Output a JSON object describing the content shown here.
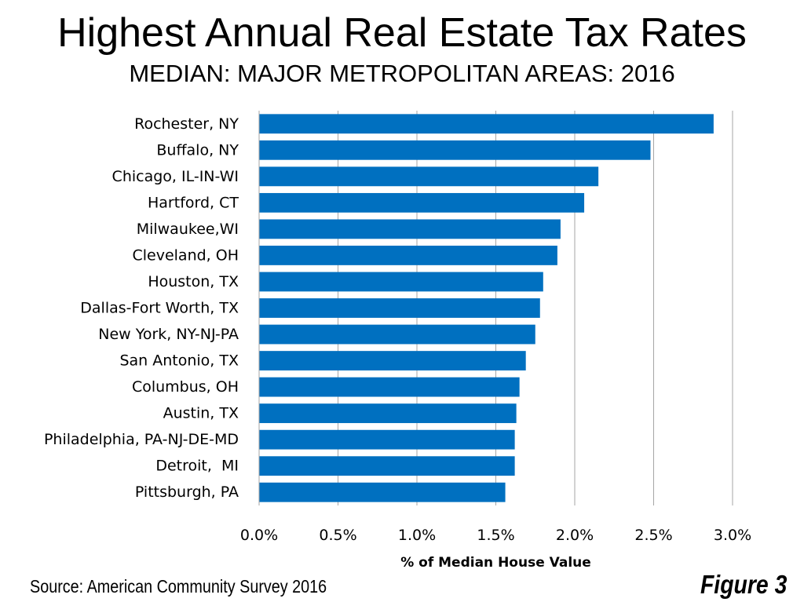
{
  "chart_data": {
    "type": "bar",
    "orientation": "horizontal",
    "title": "Highest Annual Real Estate Tax Rates",
    "subtitle": "MEDIAN: MAJOR METROPOLITAN AREAS: 2016",
    "categories": [
      "Rochester, NY",
      "Buffalo, NY",
      "Chicago, IL-IN-WI",
      "Hartford, CT",
      "Milwaukee,WI",
      "Cleveland, OH",
      "Houston, TX",
      "Dallas-Fort Worth, TX",
      "New York, NY-NJ-PA",
      "San Antonio, TX",
      "Columbus, OH",
      "Austin, TX",
      "Philadelphia, PA-NJ-DE-MD",
      "Detroit,  MI",
      "Pittsburgh, PA"
    ],
    "values": [
      2.88,
      2.48,
      2.15,
      2.06,
      1.91,
      1.89,
      1.8,
      1.78,
      1.75,
      1.69,
      1.65,
      1.63,
      1.62,
      1.62,
      1.56
    ],
    "xlabel": "% of Median House Value",
    "ylabel": "",
    "xlim": [
      0,
      3.0
    ],
    "ticks": [
      0,
      0.5,
      1.0,
      1.5,
      2.0,
      2.5,
      3.0
    ],
    "tick_labels": [
      "0.0%",
      "0.5%",
      "1.0%",
      "1.5%",
      "2.0%",
      "2.5%",
      "3.0%"
    ],
    "grid": true,
    "bar_color": "#0070C0",
    "grid_color": "#A6A6A6"
  },
  "footer": {
    "source": "Source: American Community Survey 2016",
    "figure": "Figure 3"
  }
}
